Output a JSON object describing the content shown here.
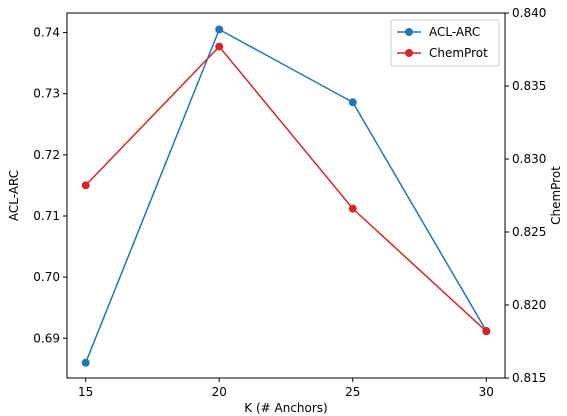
{
  "chart_data": {
    "type": "line",
    "x": [
      15,
      20,
      25,
      30
    ],
    "xlabel": "K (# Anchors)",
    "xticks": [
      "15",
      "20",
      "25",
      "30"
    ],
    "xlim": [
      14.3,
      30.7
    ],
    "left_axis": {
      "label": "ACL-ARC",
      "ylim": [
        0.6835,
        0.7432
      ],
      "ticks": [
        "0.69",
        "0.70",
        "0.71",
        "0.72",
        "0.73",
        "0.74"
      ]
    },
    "right_axis": {
      "label": "ChemProt",
      "ylim": [
        0.815,
        0.84
      ],
      "ticks": [
        "0.815",
        "0.820",
        "0.825",
        "0.830",
        "0.835",
        "0.840"
      ]
    },
    "series": [
      {
        "name": "ACL-ARC",
        "axis": "left",
        "color": "#1f77b4",
        "values": [
          0.686,
          0.7405,
          0.7286,
          0.6912
        ]
      },
      {
        "name": "ChemProt",
        "axis": "right",
        "color": "#d62728",
        "values": [
          0.8282,
          0.8377,
          0.8266,
          0.8182
        ]
      }
    ],
    "legend": {
      "placement": "top-right",
      "entries": [
        "ACL-ARC",
        "ChemProt"
      ]
    },
    "grid": false
  }
}
